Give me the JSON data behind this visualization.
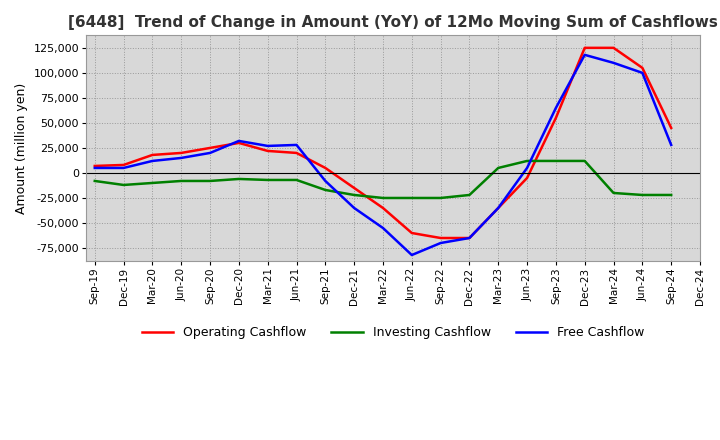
{
  "title": "[6448]  Trend of Change in Amount (YoY) of 12Mo Moving Sum of Cashflows",
  "ylabel": "Amount (million yen)",
  "ylim": [
    -87500,
    137500
  ],
  "yticks": [
    -75000,
    -50000,
    -25000,
    0,
    25000,
    50000,
    75000,
    100000,
    125000
  ],
  "background_color": "#ffffff",
  "plot_bg_color": "#d8d8d8",
  "grid_color": "#999999",
  "labels": [
    "Sep-19",
    "Dec-19",
    "Mar-20",
    "Jun-20",
    "Sep-20",
    "Dec-20",
    "Mar-21",
    "Jun-21",
    "Sep-21",
    "Dec-21",
    "Mar-22",
    "Jun-22",
    "Sep-22",
    "Dec-22",
    "Mar-23",
    "Jun-23",
    "Sep-23",
    "Dec-23",
    "Mar-24",
    "Jun-24",
    "Sep-24",
    "Dec-24"
  ],
  "operating": [
    7000,
    8000,
    18000,
    20000,
    25000,
    30000,
    22000,
    20000,
    5000,
    -15000,
    -35000,
    -60000,
    -65000,
    -65000,
    -35000,
    -5000,
    55000,
    125000,
    125000,
    105000,
    45000,
    null
  ],
  "investing": [
    -8000,
    -12000,
    -10000,
    -8000,
    -8000,
    -6000,
    -7000,
    -7000,
    -17000,
    -22000,
    -25000,
    -25000,
    -25000,
    -22000,
    5000,
    12000,
    12000,
    12000,
    -20000,
    -22000,
    -22000,
    null
  ],
  "free": [
    5000,
    5000,
    12000,
    15000,
    20000,
    32000,
    27000,
    28000,
    -8000,
    -35000,
    -55000,
    -82000,
    -70000,
    -65000,
    -35000,
    5000,
    65000,
    118000,
    110000,
    100000,
    28000,
    null
  ],
  "line_colors": {
    "operating": "#ff0000",
    "investing": "#008000",
    "free": "#0000ff"
  },
  "legend_labels": [
    "Operating Cashflow",
    "Investing Cashflow",
    "Free Cashflow"
  ]
}
